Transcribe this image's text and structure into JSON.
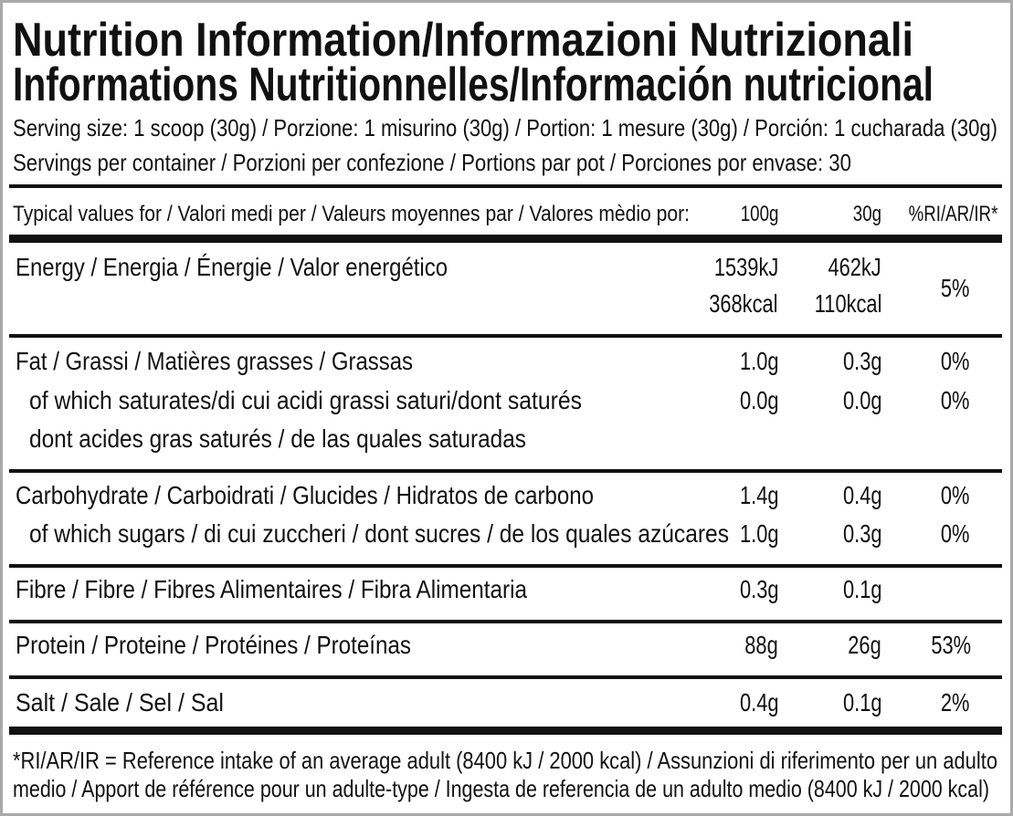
{
  "title": {
    "line1": "Nutrition Information/Informazioni Nutrizionali",
    "line2": "Informations Nutritionnelles/Información nutricional"
  },
  "serving_size": "Serving size: 1 scoop (30g) / Porzione: 1 misurino (30g) / Portion: 1 mesure (30g) / Porción: 1 cucharada (30g)",
  "servings_per_container": "Servings per container / Porzioni per confezione / Portions par pot / Porciones por envase: 30",
  "table": {
    "header": {
      "label": "Typical values for / Valori medi per / Valeurs moyennes par / Valores mèdio por:",
      "col1": "100g",
      "col2": "30g",
      "col3": "%RI/AR/IR*"
    },
    "energy": {
      "label": "Energy / Energia / Énergie / Valor energético",
      "per100_kj": "1539kJ",
      "per100_kcal": "368kcal",
      "per30_kj": "462kJ",
      "per30_kcal": "110kcal",
      "ri": "5%"
    },
    "fat": {
      "label": "Fat / Grassi / Matières grasses / Grassas",
      "per100": "1.0g",
      "per30": "0.3g",
      "ri": "0%"
    },
    "saturates": {
      "label": "of which saturates/di cui acidi grassi saturi/dont saturés",
      "label2": "dont acides gras saturés / de las quales saturadas",
      "per100": "0.0g",
      "per30": "0.0g",
      "ri": "0%"
    },
    "carbohydrate": {
      "label": "Carbohydrate / Carboidrati / Glucides / Hidratos de carbono",
      "per100": "1.4g",
      "per30": "0.4g",
      "ri": "0%"
    },
    "sugars": {
      "label": "of which sugars / di cui zuccheri / dont sucres / de los quales azúcares",
      "per100": "1.0g",
      "per30": "0.3g",
      "ri": "0%"
    },
    "fibre": {
      "label": "Fibre / Fibre / Fibres Alimentaires / Fibra Alimentaria",
      "per100": "0.3g",
      "per30": "0.1g"
    },
    "protein": {
      "label": "Protein / Proteine / Protéines / Proteínas",
      "per100": "88g",
      "per30": "26g",
      "ri": "53%"
    },
    "salt": {
      "label": "Salt / Sale / Sel / Sal",
      "per100": "0.4g",
      "per30": "0.1g",
      "ri": "2%"
    }
  },
  "footnote": {
    "line1": "*RI/AR/IR = Reference intake of an average adult (8400 kJ / 2000 kcal)  / Assunzioni di riferimento per un adulto",
    "line2": "medio / Apport de référence pour un adulte-type / Ingesta de referencia de un adulto medio (8400 kJ / 2000 kcal)"
  }
}
